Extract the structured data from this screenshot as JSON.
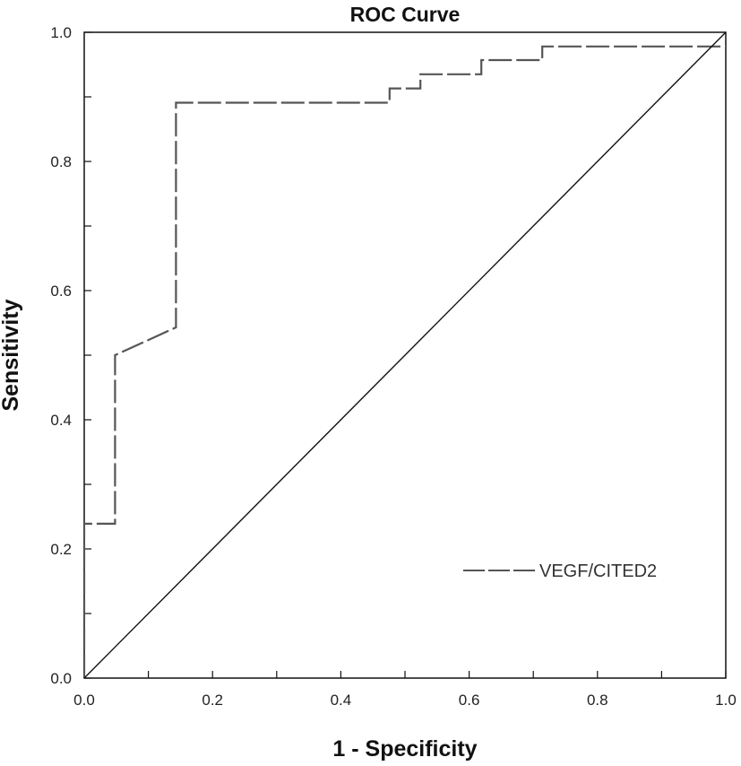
{
  "chart_data": {
    "type": "line",
    "title": "ROC Curve",
    "xlabel": "1 - Specificity",
    "ylabel": "Sensitivity",
    "xlim": [
      0,
      1
    ],
    "ylim": [
      0,
      1
    ],
    "x_ticks": [
      "0.0",
      "0.2",
      "0.4",
      "0.6",
      "0.8",
      "1.0"
    ],
    "y_ticks": [
      "0.0",
      "0.2",
      "0.4",
      "0.6",
      "0.8",
      "1.0"
    ],
    "grid": false,
    "legend_position": "bottom-right",
    "series": [
      {
        "name": "VEGF/CITED2",
        "style": "dashed",
        "color": "#555555",
        "x": [
          0.0,
          0.0,
          0.048,
          0.048,
          0.143,
          0.143,
          0.476,
          0.476,
          0.524,
          0.524,
          0.619,
          0.619,
          0.714,
          0.714,
          1.0
        ],
        "y": [
          0.0,
          0.239,
          0.239,
          0.5,
          0.543,
          0.891,
          0.891,
          0.913,
          0.913,
          0.935,
          0.935,
          0.957,
          0.957,
          0.978,
          0.978
        ]
      },
      {
        "name": "",
        "style": "solid",
        "color": "#111111",
        "x": [
          0.0,
          1.0
        ],
        "y": [
          0.0,
          1.0
        ]
      }
    ]
  }
}
